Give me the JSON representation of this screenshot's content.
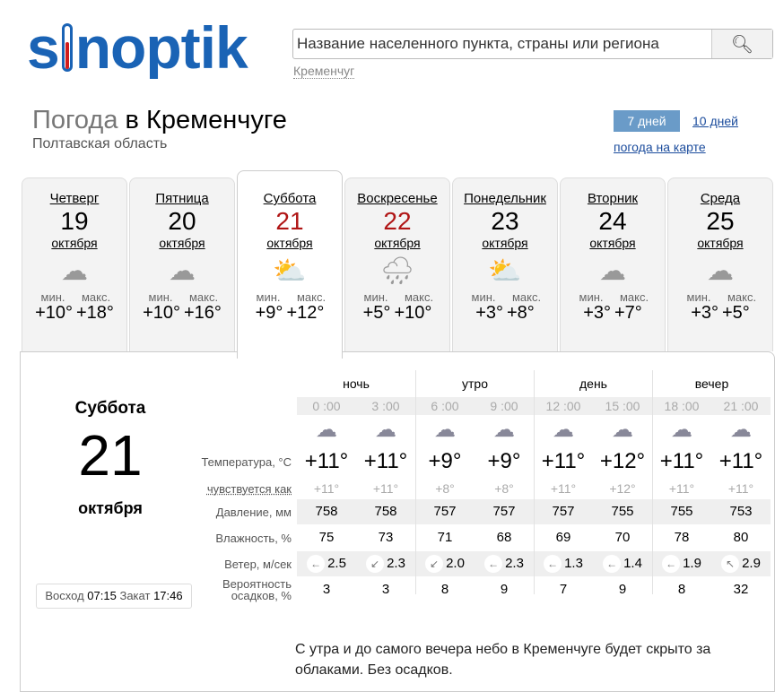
{
  "logo": "sinoptik",
  "search": {
    "placeholder": "Название населенного пункта, страны или региона",
    "recent": "Кременчуг",
    "icon": "search-icon"
  },
  "header": {
    "title_prefix": "Погода",
    "title_city": "в Кременчуге",
    "region": "Полтавская область",
    "tab7": "7 дней",
    "tab10": "10 дней",
    "map_link": "погода на карте"
  },
  "colors": {
    "brand": "#1a63b5",
    "weekend": "#b01515",
    "tab_active": "#6a9bc8"
  },
  "days": [
    {
      "name": "Четверг",
      "date": "19",
      "month": "октября",
      "icon": "cloudy",
      "min_label": "мин.",
      "max_label": "макс.",
      "min": "+10°",
      "max": "+18°"
    },
    {
      "name": "Пятница",
      "date": "20",
      "month": "октября",
      "icon": "cloudy",
      "min_label": "мин.",
      "max_label": "макс.",
      "min": "+10°",
      "max": "+16°"
    },
    {
      "name": "Суббота",
      "date": "21",
      "month": "октября",
      "icon": "partly-cloudy",
      "min_label": "мин.",
      "max_label": "макс.",
      "min": "+9°",
      "max": "+12°",
      "weekend": true,
      "selected": true
    },
    {
      "name": "Воскресенье",
      "date": "22",
      "month": "октября",
      "icon": "rain",
      "min_label": "мин.",
      "max_label": "макс.",
      "min": "+5°",
      "max": "+10°",
      "weekend": true
    },
    {
      "name": "Понедельник",
      "date": "23",
      "month": "октября",
      "icon": "partly-cloudy",
      "min_label": "мин.",
      "max_label": "макс.",
      "min": "+3°",
      "max": "+8°"
    },
    {
      "name": "Вторник",
      "date": "24",
      "month": "октября",
      "icon": "cloudy",
      "min_label": "мин.",
      "max_label": "макс.",
      "min": "+3°",
      "max": "+7°"
    },
    {
      "name": "Среда",
      "date": "25",
      "month": "октября",
      "icon": "cloudy",
      "min_label": "мин.",
      "max_label": "макс.",
      "min": "+3°",
      "max": "+5°"
    }
  ],
  "detail": {
    "day": "Суббота",
    "date": "21",
    "month": "октября",
    "sunrise_label": "Восход",
    "sunrise": "07:15",
    "sunset_label": "Закат",
    "sunset": "17:46",
    "groups": [
      "ночь",
      "утро",
      "день",
      "вечер"
    ],
    "times": [
      "0 :00",
      "3 :00",
      "6 :00",
      "9 :00",
      "12 :00",
      "15 :00",
      "18 :00",
      "21 :00"
    ],
    "icons": [
      "cloudy-night-moon",
      "overcast-night",
      "overcast-night",
      "partly-cloudy-sun",
      "light-cloud",
      "light-cloud",
      "overcast-night",
      "overcast-night"
    ],
    "labels": {
      "temp": "Температура, °C",
      "feels": "чувствуется как",
      "pressure": "Давление, мм",
      "humidity": "Влажность, %",
      "wind": "Ветер, м/сек",
      "precip": "Вероятность осадков, %"
    },
    "temp": [
      "+11°",
      "+11°",
      "+9°",
      "+9°",
      "+11°",
      "+12°",
      "+11°",
      "+11°"
    ],
    "feels": [
      "+11°",
      "+11°",
      "+8°",
      "+8°",
      "+11°",
      "+12°",
      "+11°",
      "+11°"
    ],
    "pressure": [
      "758",
      "758",
      "757",
      "757",
      "757",
      "755",
      "755",
      "753"
    ],
    "humidity": [
      "75",
      "73",
      "71",
      "68",
      "69",
      "70",
      "78",
      "80"
    ],
    "wind_dir": [
      "←",
      "↙",
      "↙",
      "←",
      "←",
      "←",
      "←",
      "↖"
    ],
    "wind": [
      "2.5",
      "2.3",
      "2.0",
      "2.3",
      "1.3",
      "1.4",
      "1.9",
      "2.9"
    ],
    "precip": [
      "3",
      "3",
      "8",
      "9",
      "7",
      "9",
      "8",
      "32"
    ],
    "description": "С утра и до самого вечера небо в Кременчуге будет скрыто за облаками. Без осадков."
  }
}
